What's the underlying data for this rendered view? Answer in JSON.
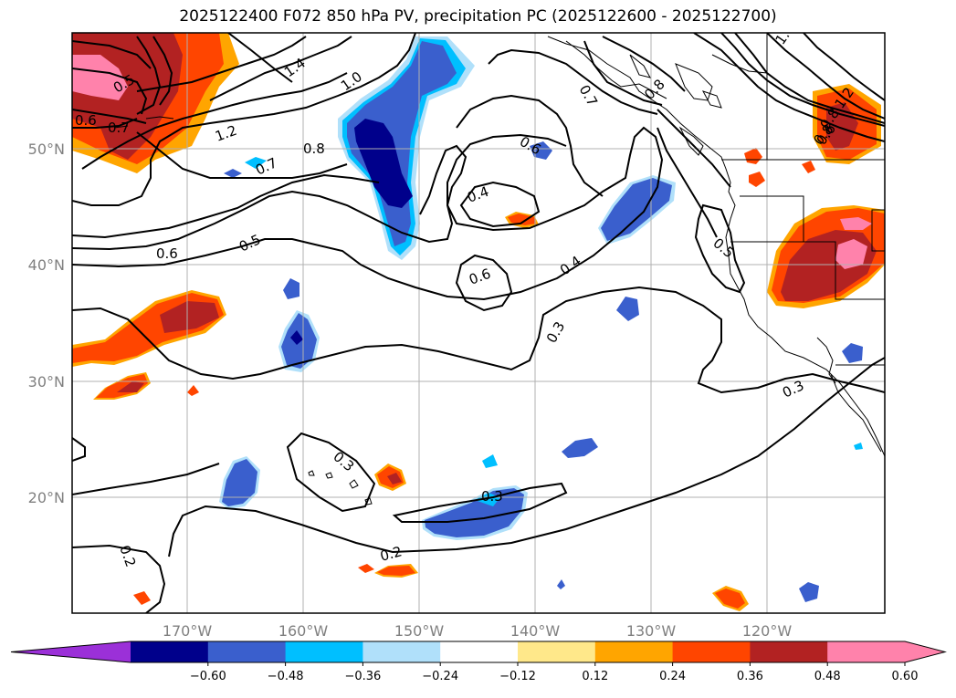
{
  "title": "2025122400 F072 850 hPa PV, precipitation PC (2025122600 - 2025122700)",
  "lat_labels": [
    "50°N",
    "40°N",
    "30°N",
    "20°N"
  ],
  "lon_labels": [
    "170°W",
    "160°W",
    "150°W",
    "140°W",
    "130°W",
    "120°W"
  ],
  "contour_labels": [
    "0.6",
    "0.7",
    "0.5",
    "1.4",
    "1.0",
    "1.2",
    "0.8",
    "0.7",
    "0.5",
    "0.6",
    "0.6",
    "0.4",
    "0.6",
    "0.4",
    "0.7",
    "0.8",
    "0.8",
    "1.2",
    "0.8",
    "0.6",
    "0.5",
    "0.3",
    "0.3",
    "0.3",
    "0.3",
    "0.2",
    "0.2",
    "1."
  ],
  "colorbar": {
    "ticks": [
      "−0.60",
      "−0.48",
      "−0.36",
      "−0.24",
      "−0.12",
      "0.12",
      "0.24",
      "0.36",
      "0.48",
      "0.60"
    ],
    "colors": [
      "#9b30d8",
      "#00008b",
      "#3a5fcd",
      "#00bfff",
      "#b0e0fa",
      "#ffffff",
      "#ffe88a",
      "#ffa500",
      "#ff4500",
      "#b22222",
      "#ff82ab",
      "#ff82ab"
    ]
  },
  "fill_colors": {
    "pink": "#ff82ab",
    "dark_red": "#b22222",
    "red_orange": "#ff4500",
    "orange": "#ffa500",
    "yellow": "#ffe88a",
    "navy": "#00008b",
    "blue": "#3a5fcd",
    "sky": "#00bfff",
    "light_blue": "#b0e0fa"
  }
}
